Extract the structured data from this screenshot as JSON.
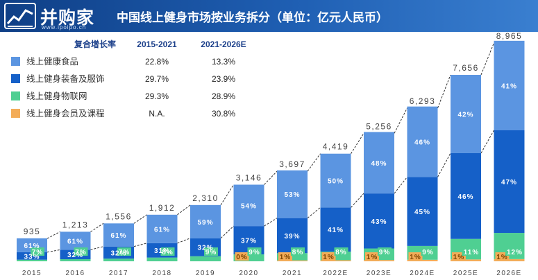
{
  "header": {
    "logo_text": "并购家",
    "logo_url": "www.ipoipo.cn",
    "title": "中国线上健身市场按业务拆分（单位：亿元人民币）"
  },
  "growth_table": {
    "col_label": "复合增长率",
    "col_1": "2015-2021",
    "col_2": "2021-2026E",
    "rows": [
      {
        "name": "线上健康食品",
        "v1": "22.8%",
        "v2": "13.3%",
        "color": "#5b95e1"
      },
      {
        "name": "线上健身装备及服饰",
        "v1": "29.7%",
        "v2": "23.9%",
        "color": "#1560c8"
      },
      {
        "name": "线上健身物联网",
        "v1": "29.3%",
        "v2": "28.9%",
        "color": "#4fcf92"
      },
      {
        "name": "线上健身会员及课程",
        "v1": "N.A.",
        "v2": "30.8%",
        "color": "#f3ac58"
      }
    ]
  },
  "chart_data": {
    "type": "bar",
    "stacked": true,
    "categories": [
      "2015",
      "2016",
      "2017",
      "2018",
      "2019",
      "2020",
      "2021",
      "2022E",
      "2023E",
      "2024E",
      "2025E",
      "2026E"
    ],
    "totals": [
      935,
      1213,
      1556,
      1912,
      2310,
      3146,
      3697,
      4419,
      5256,
      6293,
      7656,
      8965
    ],
    "total_labels": [
      "935",
      "1,213",
      "1,556",
      "1,912",
      "2,310",
      "3,146",
      "3,697",
      "4,419",
      "5,256",
      "6,293",
      "7,656",
      "8,965"
    ],
    "series": [
      {
        "name": "线上健身会员及课程",
        "color": "#f3ac58",
        "percents": [
          null,
          null,
          null,
          null,
          null,
          0,
          1,
          1,
          1,
          1,
          1,
          1
        ],
        "labels": [
          "",
          "",
          "",
          "",
          "",
          "0%",
          "1%",
          "1%",
          "1%",
          "1%",
          "1%",
          "1%"
        ]
      },
      {
        "name": "线上健身物联网",
        "color": "#4fcf92",
        "percents": [
          7,
          7,
          7,
          8,
          9,
          9,
          8,
          8,
          9,
          9,
          11,
          12
        ],
        "labels": [
          "7%",
          "7%",
          "7%",
          "8%",
          "9%",
          "9%",
          "8%",
          "8%",
          "9%",
          "9%",
          "11%",
          "12%"
        ]
      },
      {
        "name": "线上健身装备及服饰",
        "color": "#1560c8",
        "percents": [
          33,
          32,
          32,
          31,
          32,
          37,
          39,
          41,
          43,
          45,
          46,
          47
        ],
        "labels": [
          "33%",
          "32%",
          "32%",
          "31%",
          "32%",
          "37%",
          "39%",
          "41%",
          "43%",
          "45%",
          "46%",
          "47%"
        ]
      },
      {
        "name": "线上健康食品",
        "color": "#5b95e1",
        "percents": [
          61,
          61,
          61,
          61,
          59,
          54,
          53,
          50,
          48,
          46,
          42,
          41
        ],
        "labels": [
          "61%",
          "61%",
          "61%",
          "61%",
          "59%",
          "54%",
          "53%",
          "50%",
          "48%",
          "46%",
          "42%",
          "41%"
        ]
      }
    ],
    "ylim": [
      0,
      8965
    ],
    "grid": false,
    "xlabel": "",
    "ylabel": ""
  }
}
